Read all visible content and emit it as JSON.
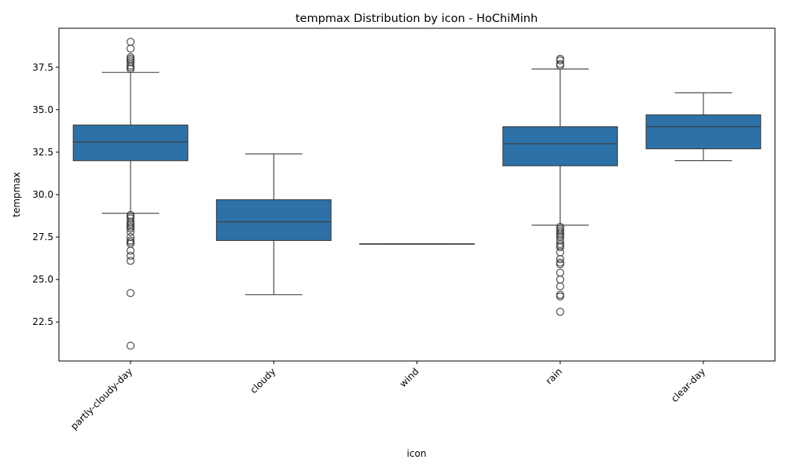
{
  "chart_data": {
    "type": "box",
    "title": "tempmax Distribution by icon - HoChiMinh",
    "xlabel": "icon",
    "ylabel": "tempmax",
    "ylim": [
      20.2,
      39.8
    ],
    "yticks": [
      22.5,
      25.0,
      27.5,
      30.0,
      32.5,
      35.0,
      37.5
    ],
    "ytick_labels": [
      "22.5",
      "25.0",
      "27.5",
      "30.0",
      "32.5",
      "35.0",
      "37.5"
    ],
    "box_color": "#2c71a7",
    "line_color": "#3d3d3d",
    "categories": [
      "partly-cloudy-day",
      "cloudy",
      "wind",
      "rain",
      "clear-day"
    ],
    "boxes": [
      {
        "label": "partly-cloudy-day",
        "whisker_low": 28.9,
        "q1": 32.0,
        "median": 33.1,
        "q3": 34.1,
        "whisker_high": 37.2,
        "outliers": [
          39.0,
          38.6,
          38.1,
          38.0,
          37.9,
          37.8,
          37.6,
          37.5,
          37.4,
          28.8,
          28.7,
          28.6,
          28.4,
          28.3,
          28.2,
          28.1,
          28.0,
          27.8,
          27.5,
          27.3,
          27.2,
          27.1,
          26.7,
          26.4,
          26.1,
          24.2,
          21.1
        ]
      },
      {
        "label": "cloudy",
        "whisker_low": 24.1,
        "q1": 27.3,
        "median": 28.4,
        "q3": 29.7,
        "whisker_high": 32.4,
        "outliers": []
      },
      {
        "label": "wind",
        "whisker_low": 27.1,
        "q1": 27.1,
        "median": 27.1,
        "q3": 27.1,
        "whisker_high": 27.1,
        "outliers": []
      },
      {
        "label": "rain",
        "whisker_low": 28.2,
        "q1": 31.7,
        "median": 33.0,
        "q3": 34.0,
        "whisker_high": 37.4,
        "outliers": [
          38.0,
          37.9,
          37.7,
          37.6,
          28.1,
          28.0,
          27.9,
          27.8,
          27.7,
          27.6,
          27.5,
          27.3,
          27.1,
          27.0,
          26.9,
          26.6,
          26.2,
          26.0,
          25.9,
          25.4,
          25.0,
          24.6,
          24.1,
          24.0,
          23.1
        ]
      },
      {
        "label": "clear-day",
        "whisker_low": 32.0,
        "q1": 32.7,
        "median": 34.0,
        "q3": 34.7,
        "whisker_high": 36.0,
        "outliers": []
      }
    ]
  }
}
